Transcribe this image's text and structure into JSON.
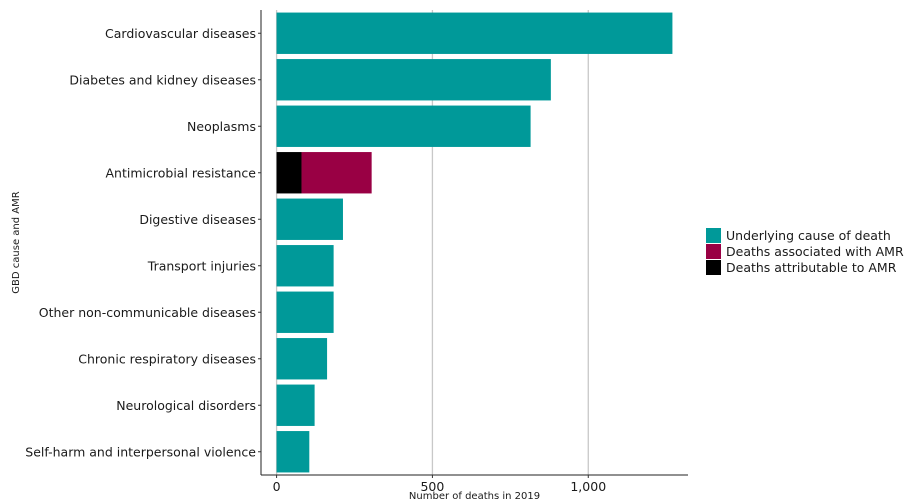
{
  "chart_data": {
    "type": "bar",
    "orientation": "horizontal",
    "stacked": true,
    "xlabel": "Number of deaths in 2019",
    "ylabel": "GBD cause and AMR",
    "xlim": [
      -50,
      1320
    ],
    "xticks": [
      0,
      500,
      1000
    ],
    "xtick_labels": [
      "0",
      "500",
      "1,000"
    ],
    "grid": "vertical-major",
    "legend_position": "right",
    "categories": [
      "Cardiovascular diseases",
      "Diabetes and kidney diseases",
      "Neoplasms",
      "Antimicrobial resistance",
      "Digestive diseases",
      "Transport injuries",
      "Other non-communicable diseases",
      "Chronic respiratory diseases",
      "Neurological disorders",
      "Self-harm and interpersonal violence"
    ],
    "series": [
      {
        "name": "Deaths attributable to AMR",
        "color": "#000000",
        "values": [
          0,
          0,
          0,
          80,
          0,
          0,
          0,
          0,
          0,
          0
        ]
      },
      {
        "name": "Deaths associated with AMR",
        "color": "#990044",
        "values": [
          0,
          0,
          0,
          225,
          0,
          0,
          0,
          0,
          0,
          0
        ]
      },
      {
        "name": "Underlying cause of death",
        "color": "#009999",
        "values": [
          1270,
          880,
          815,
          0,
          213,
          183,
          183,
          162,
          122,
          105
        ]
      }
    ],
    "legend_order": [
      "Underlying cause of death",
      "Deaths associated with AMR",
      "Deaths attributable to AMR"
    ]
  }
}
